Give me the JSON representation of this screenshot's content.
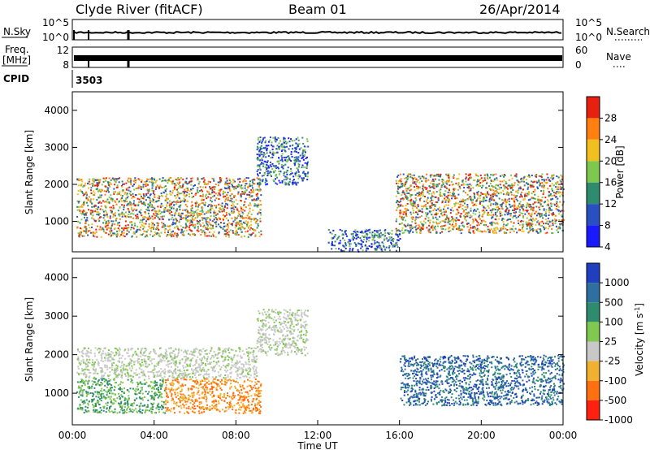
{
  "header": {
    "station": "Clyde River (fitACF)",
    "beam": "Beam 01",
    "date": "26/Apr/2014"
  },
  "panels": {
    "nsky_label": "N.Sky",
    "nsky_ticks": [
      "10^5",
      "10^0"
    ],
    "nsearch_label": "N.Search",
    "nsearch_ticks": [
      "10^5",
      "10^0"
    ],
    "freq_label_1": "Freq.",
    "freq_label_2": "[MHz]",
    "freq_ticks": [
      "12",
      "8"
    ],
    "nave_label": "Nave",
    "nave_ticks": [
      "60",
      "0"
    ],
    "cpid_label": "CPID",
    "cpid_value": "3503"
  },
  "chart_data": [
    {
      "type": "heatmap",
      "title": "",
      "ylabel": "Slant Range [km]",
      "xlabel": "",
      "ylim": [
        180,
        4500
      ],
      "xlim_hours": [
        0,
        24
      ],
      "yticks": [
        "1000",
        "2000",
        "3000",
        "4000"
      ],
      "colorbar_label": "Power [dB]",
      "colorbar_ticks": [
        "4",
        "8",
        "12",
        "16",
        "20",
        "24",
        "28"
      ],
      "colorbar_colors": [
        "#1a1aff",
        "#2a4fc0",
        "#2e8b6e",
        "#7fc850",
        "#f0c020",
        "#ff8010",
        "#e82010"
      ],
      "clusters": [
        {
          "t0": 0.2,
          "t1": 9.2,
          "r0": 600,
          "r1": 2200,
          "color": "mixed"
        },
        {
          "t0": 15.8,
          "t1": 24.0,
          "r0": 700,
          "r1": 2300,
          "color": "mixed"
        },
        {
          "t0": 9.0,
          "t1": 11.5,
          "r0": 2000,
          "r1": 3300,
          "color": "blue-green"
        },
        {
          "t0": 12.5,
          "t1": 16.0,
          "r0": 200,
          "r1": 800,
          "color": "blue-green"
        }
      ]
    },
    {
      "type": "heatmap",
      "title": "",
      "ylabel": "Slant Range [km]",
      "xlabel": "Time UT",
      "ylim": [
        180,
        4500
      ],
      "xlim_hours": [
        0,
        24
      ],
      "yticks": [
        "1000",
        "2000",
        "3000",
        "4000"
      ],
      "xticks": [
        "00:00",
        "04:00",
        "08:00",
        "12:00",
        "16:00",
        "20:00",
        "00:00"
      ],
      "colorbar_label": "Velocity [m s^-1]",
      "colorbar_ticks": [
        "1000",
        "500",
        "100",
        "25",
        "-25",
        "-100",
        "-500",
        "-1000"
      ],
      "colorbar_colors": [
        "#1f3fbf",
        "#2e6fa0",
        "#2e8b6e",
        "#80c850",
        "#c8c8c8",
        "#f0b030",
        "#ff7010",
        "#ff2010"
      ],
      "clusters": [
        {
          "t0": 0.2,
          "t1": 4.5,
          "r0": 500,
          "r1": 1400,
          "color": "green"
        },
        {
          "t0": 4.5,
          "t1": 9.2,
          "r0": 500,
          "r1": 1400,
          "color": "orange"
        },
        {
          "t0": 0.2,
          "t1": 9.0,
          "r0": 1400,
          "r1": 2200,
          "color": "grey"
        },
        {
          "t0": 16.0,
          "t1": 24.0,
          "r0": 700,
          "r1": 2000,
          "color": "blue-green"
        },
        {
          "t0": 9.0,
          "t1": 11.5,
          "r0": 2000,
          "r1": 3200,
          "color": "grey"
        }
      ]
    }
  ]
}
